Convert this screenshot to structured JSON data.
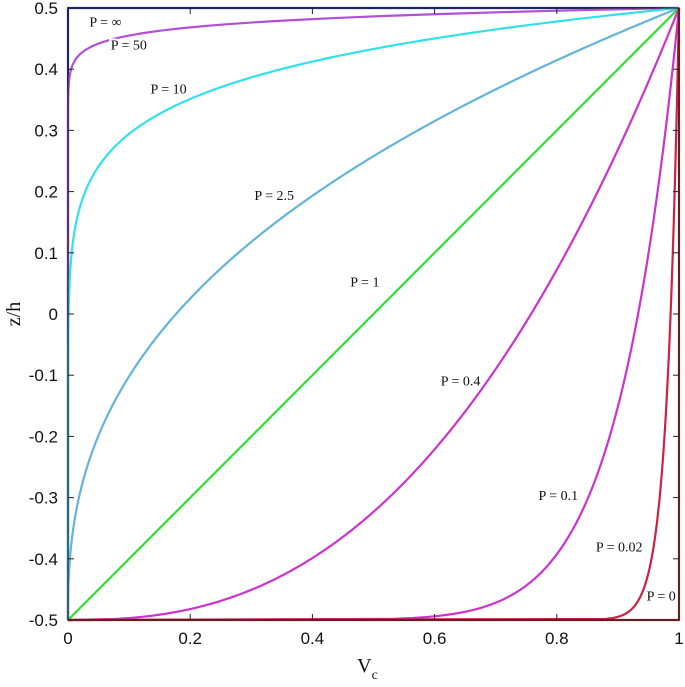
{
  "chart_data": {
    "type": "line",
    "title": "",
    "xlabel": "V",
    "xlabel_subscript": "c",
    "ylabel": "z/h",
    "xlim": [
      0,
      1
    ],
    "ylim": [
      -0.5,
      0.5
    ],
    "x_ticks": [
      "0",
      "0.2",
      "0.4",
      "0.6",
      "0.8",
      "1"
    ],
    "x_tick_values": [
      0,
      0.2,
      0.4,
      0.6,
      0.8,
      1
    ],
    "y_ticks": [
      "-0.5",
      "-0.4",
      "-0.3",
      "-0.2",
      "-0.1",
      "0",
      "0.1",
      "0.2",
      "0.3",
      "0.4",
      "0.5"
    ],
    "y_tick_values": [
      -0.5,
      -0.4,
      -0.3,
      -0.2,
      -0.1,
      0,
      0.1,
      0.2,
      0.3,
      0.4,
      0.5
    ],
    "grid": false,
    "legend": "none",
    "series": [
      {
        "label": "P = ∞",
        "p": "inf",
        "color": "#1f2fb8",
        "label_x": 0.035,
        "label_y": 0.47
      },
      {
        "label": "P = 50",
        "p": 50,
        "color": "#b050d8",
        "label_x": 0.07,
        "label_y": 0.432
      },
      {
        "label": "P = 10",
        "p": 10,
        "color": "#33e0e8",
        "label_x": 0.135,
        "label_y": 0.36
      },
      {
        "label": "P = 2.5",
        "p": 2.5,
        "color": "#63b4d8",
        "label_x": 0.305,
        "label_y": 0.186
      },
      {
        "label": "P = 1",
        "p": 1,
        "color": "#33dd33",
        "label_x": 0.462,
        "label_y": 0.045
      },
      {
        "label": "P = 0.4",
        "p": 0.4,
        "color": "#cc33cc",
        "label_x": 0.61,
        "label_y": -0.117
      },
      {
        "label": "P = 0.1",
        "p": 0.1,
        "color": "#cc33cc",
        "label_x": 0.77,
        "label_y": -0.304
      },
      {
        "label": "P = 0.02",
        "p": 0.02,
        "color": "#cc2244",
        "label_x": 0.864,
        "label_y": -0.388
      },
      {
        "label": "P = 0",
        "p": 0,
        "color": "#bb2222",
        "label_x": 0.947,
        "label_y": -0.468
      }
    ]
  }
}
